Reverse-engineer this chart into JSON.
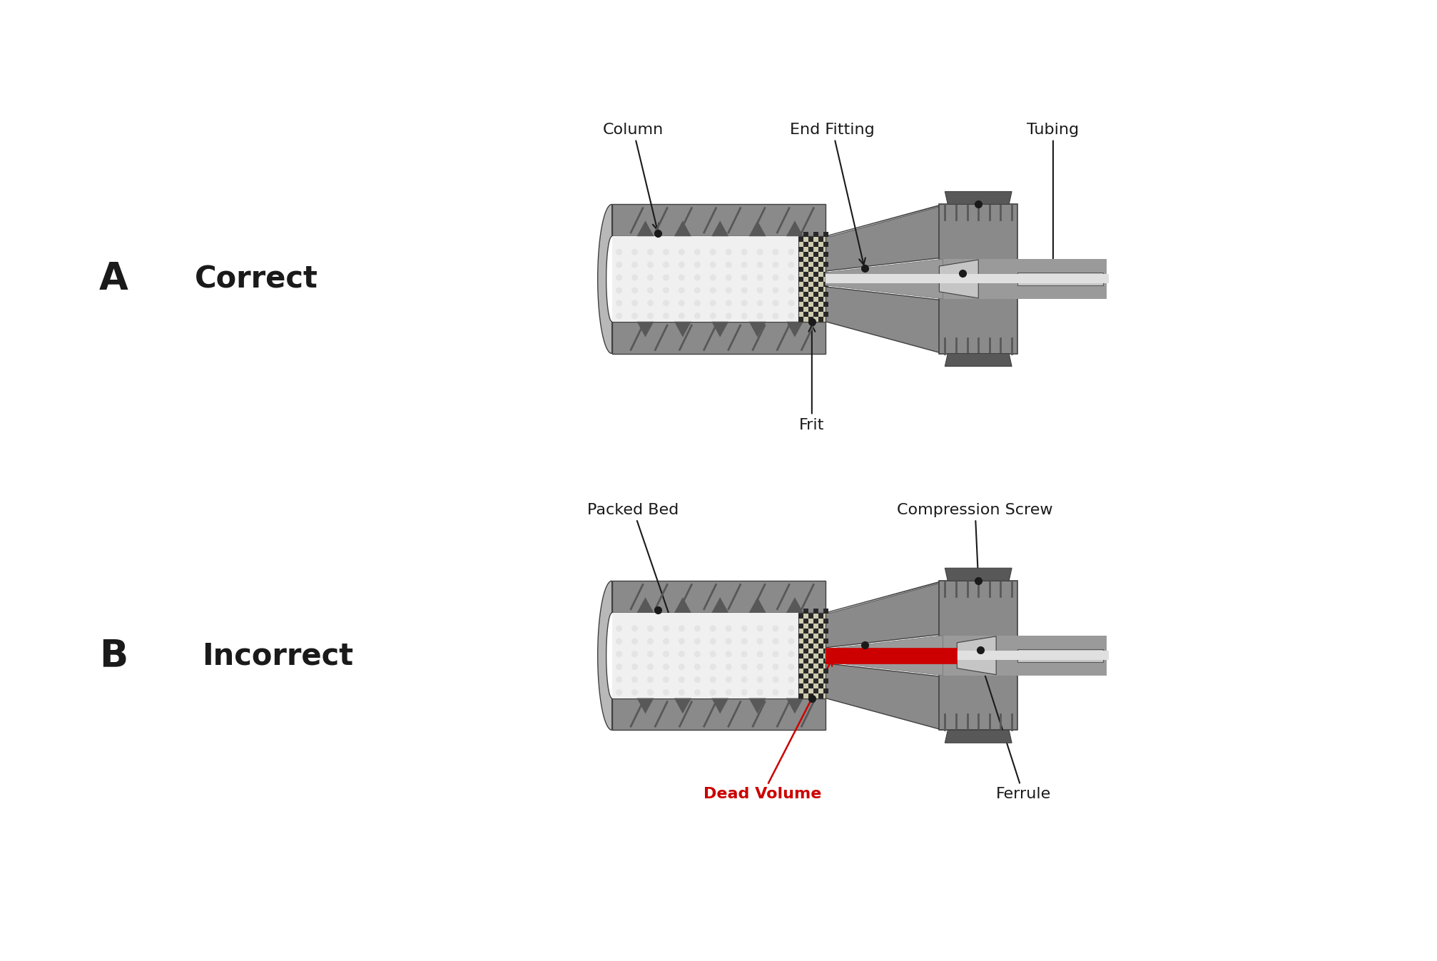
{
  "bg_color": "#ffffff",
  "fig_width": 20.0,
  "fig_height": 13.33,
  "dpi": 100,
  "col_metal": "#8a8a8a",
  "col_metal_l": "#b8b8b8",
  "col_metal_d": "#585858",
  "col_metal_e": "#404040",
  "col_packed": "#f0f0f0",
  "col_frit_bg": "#d0ccb0",
  "col_frit_dark": "#282828",
  "col_bore": "#b0b0b0",
  "col_tube": "#c8c8c8",
  "col_tube_inner": "#e0e0e0",
  "col_red": "#cc0000",
  "col_black": "#1a1a1a",
  "label_fontsize": 16,
  "title_fontsize": 30,
  "letter_fontsize": 38
}
